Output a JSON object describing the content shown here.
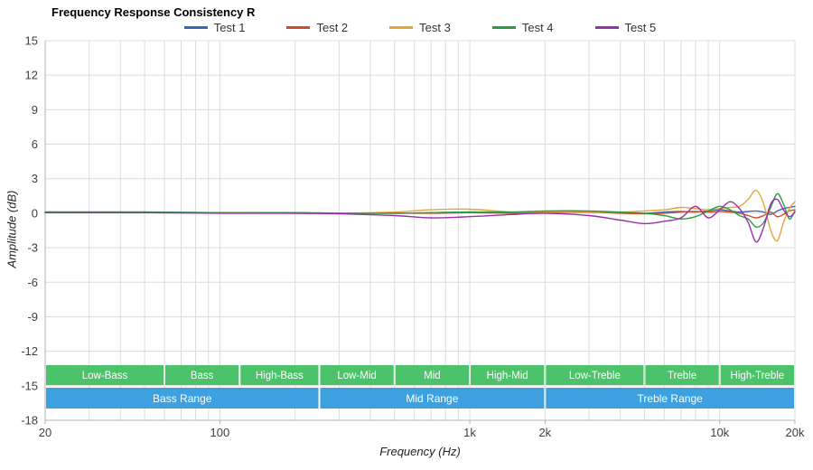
{
  "chart_data": {
    "type": "line",
    "title": "Frequency Response Consistency R",
    "xlabel": "Frequency (Hz)",
    "ylabel": "Amplitude (dB)",
    "x_scale": "log",
    "xlim": [
      20,
      20000
    ],
    "ylim": [
      -18,
      15
    ],
    "grid": true,
    "legend_position": "top",
    "y_ticks": [
      15,
      12,
      9,
      6,
      3,
      0,
      -3,
      -6,
      -9,
      -12,
      -15,
      -18
    ],
    "x_ticks": [
      {
        "value": 20,
        "label": "20"
      },
      {
        "value": 100,
        "label": "100"
      },
      {
        "value": 1000,
        "label": "1k"
      },
      {
        "value": 2000,
        "label": "2k"
      },
      {
        "value": 10000,
        "label": "10k"
      },
      {
        "value": 20000,
        "label": "20k"
      }
    ],
    "x": [
      20,
      50,
      100,
      200,
      300,
      500,
      700,
      1000,
      1500,
      2000,
      3000,
      4000,
      5000,
      6000,
      7000,
      8000,
      9000,
      10000,
      11000,
      12000,
      13000,
      14000,
      15000,
      16000,
      17000,
      18000,
      19000,
      20000
    ],
    "series": [
      {
        "name": "Test 1",
        "color": "#3a67b1",
        "values": [
          0.1,
          0.1,
          0.05,
          0.05,
          0,
          0,
          0.05,
          0.1,
          0.05,
          0.1,
          0.1,
          0.05,
          0,
          0.1,
          0.15,
          0.1,
          0.2,
          0.3,
          0.2,
          0.1,
          0.15,
          0.2,
          0.1,
          -0.1,
          0.2,
          0.4,
          0.5,
          0.6
        ]
      },
      {
        "name": "Test 2",
        "color": "#c8502b",
        "values": [
          0.05,
          0.05,
          0.05,
          0,
          0,
          0,
          0,
          0.05,
          0,
          0.05,
          0.1,
          0,
          -0.05,
          0,
          0.1,
          0.15,
          0.1,
          0.15,
          0.1,
          0,
          -0.2,
          -0.4,
          -0.2,
          0.1,
          -0.3,
          -0.1,
          0.2,
          0.3
        ]
      },
      {
        "name": "Test 3",
        "color": "#e7a33b",
        "values": [
          0.1,
          0.05,
          0.05,
          0,
          0,
          0.1,
          0.3,
          0.35,
          0.1,
          0.1,
          0.15,
          0.1,
          0.2,
          0.3,
          0.5,
          0.4,
          0.3,
          0.4,
          0.5,
          0.6,
          1.2,
          2.0,
          0.8,
          -1.5,
          -2.4,
          -0.8,
          0.4,
          1.0
        ]
      },
      {
        "name": "Test 4",
        "color": "#2d9d45",
        "values": [
          0.1,
          0.1,
          0.05,
          0.05,
          0,
          0,
          0.05,
          0.1,
          0.1,
          0.2,
          0.2,
          0.1,
          0,
          -0.2,
          -0.5,
          -0.3,
          0.2,
          0.6,
          0.3,
          -0.2,
          -0.5,
          -1.2,
          -0.8,
          0.5,
          1.7,
          0.8,
          -0.5,
          0.2
        ]
      },
      {
        "name": "Test 5",
        "color": "#9a2fae",
        "values": [
          0.05,
          0.05,
          0,
          0,
          -0.05,
          -0.2,
          -0.4,
          -0.3,
          -0.1,
          0,
          -0.2,
          -0.6,
          -0.9,
          -0.7,
          -0.4,
          0.6,
          -0.4,
          0.3,
          1.0,
          0.4,
          -0.8,
          -2.5,
          -1.2,
          0.8,
          1.2,
          0.3,
          -0.3,
          0.1
        ]
      }
    ],
    "bands": {
      "sub_band_color": "#4cc36a",
      "range_band_color": "#3da0e0",
      "band_text_color": "#ffffff",
      "sub_bands": [
        {
          "label": "Low-Bass",
          "from": 20,
          "to": 60
        },
        {
          "label": "Bass",
          "from": 60,
          "to": 120
        },
        {
          "label": "High-Bass",
          "from": 120,
          "to": 250
        },
        {
          "label": "Low-Mid",
          "from": 250,
          "to": 500
        },
        {
          "label": "Mid",
          "from": 500,
          "to": 1000
        },
        {
          "label": "High-Mid",
          "from": 1000,
          "to": 2000
        },
        {
          "label": "Low-Treble",
          "from": 2000,
          "to": 5000
        },
        {
          "label": "Treble",
          "from": 5000,
          "to": 10000
        },
        {
          "label": "High-Treble",
          "from": 10000,
          "to": 20000
        }
      ],
      "range_bands": [
        {
          "label": "Bass Range",
          "from": 20,
          "to": 250
        },
        {
          "label": "Mid Range",
          "from": 250,
          "to": 2000
        },
        {
          "label": "Treble Range",
          "from": 2000,
          "to": 20000
        }
      ]
    },
    "colors": {
      "grid": "#dcdcdc",
      "axis": "#b3b3b3",
      "tick_text": "#404040"
    }
  }
}
